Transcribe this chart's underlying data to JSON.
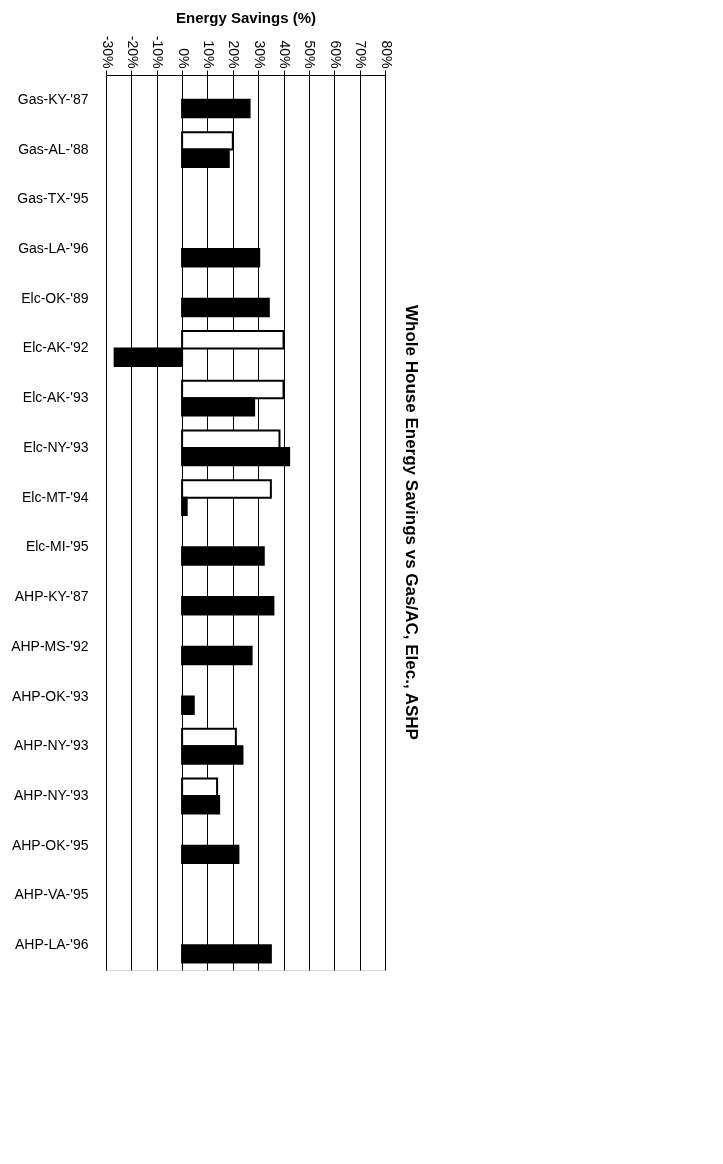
{
  "chart_data": {
    "type": "bar",
    "orientation": "horizontal",
    "title": "Whole House Energy Savings vs Gas/AC, Elec., ASHP",
    "xlabel": "Energy Savings (%)",
    "categories": [
      "Gas-KY-'87",
      "Gas-AL-'88",
      "Gas-TX-'95",
      "Gas-LA-'96",
      "Elc-OK-'89",
      "Elc-AK-'92",
      "Elc-AK-'93",
      "Elc-NY-'93",
      "Elc-MT-'94",
      "Elc-MI-'95",
      "AHP-KY-'87",
      "AHP-MS-'92",
      "AHP-OK-'93",
      "AHP-NY-'93",
      "AHP-NY-'93",
      "AHP-OK-'95",
      "AHP-VA-'95",
      "AHP-LA-'96"
    ],
    "series": [
      {
        "color": "#ffffff",
        "values": [
          null,
          20,
          null,
          null,
          null,
          40,
          40,
          38.4,
          35,
          null,
          null,
          null,
          null,
          21.2,
          13.8,
          null,
          null,
          null
        ]
      },
      {
        "color": "#000000",
        "values": [
          26.6,
          18.4,
          null,
          30.4,
          34.2,
          -26.6,
          28.4,
          42.2,
          1.8,
          32.2,
          36,
          27.4,
          4.6,
          23.8,
          14.6,
          22.2,
          null,
          35
        ]
      }
    ],
    "xlim": [
      -30,
      80
    ],
    "xticks": [
      {
        "value": -30,
        "label": "-30%"
      },
      {
        "value": -20,
        "label": "-20%"
      },
      {
        "value": -10,
        "label": "-10%"
      },
      {
        "value": 0,
        "label": "0%"
      },
      {
        "value": 10,
        "label": "10%"
      },
      {
        "value": 20,
        "label": "20%"
      },
      {
        "value": 30,
        "label": "30%"
      },
      {
        "value": 40,
        "label": "40%"
      },
      {
        "value": 50,
        "label": "50%"
      },
      {
        "value": 60,
        "label": "60%"
      },
      {
        "value": 70,
        "label": "70%"
      },
      {
        "value": 80,
        "label": "80%"
      }
    ],
    "grid": "x",
    "legend": false
  }
}
